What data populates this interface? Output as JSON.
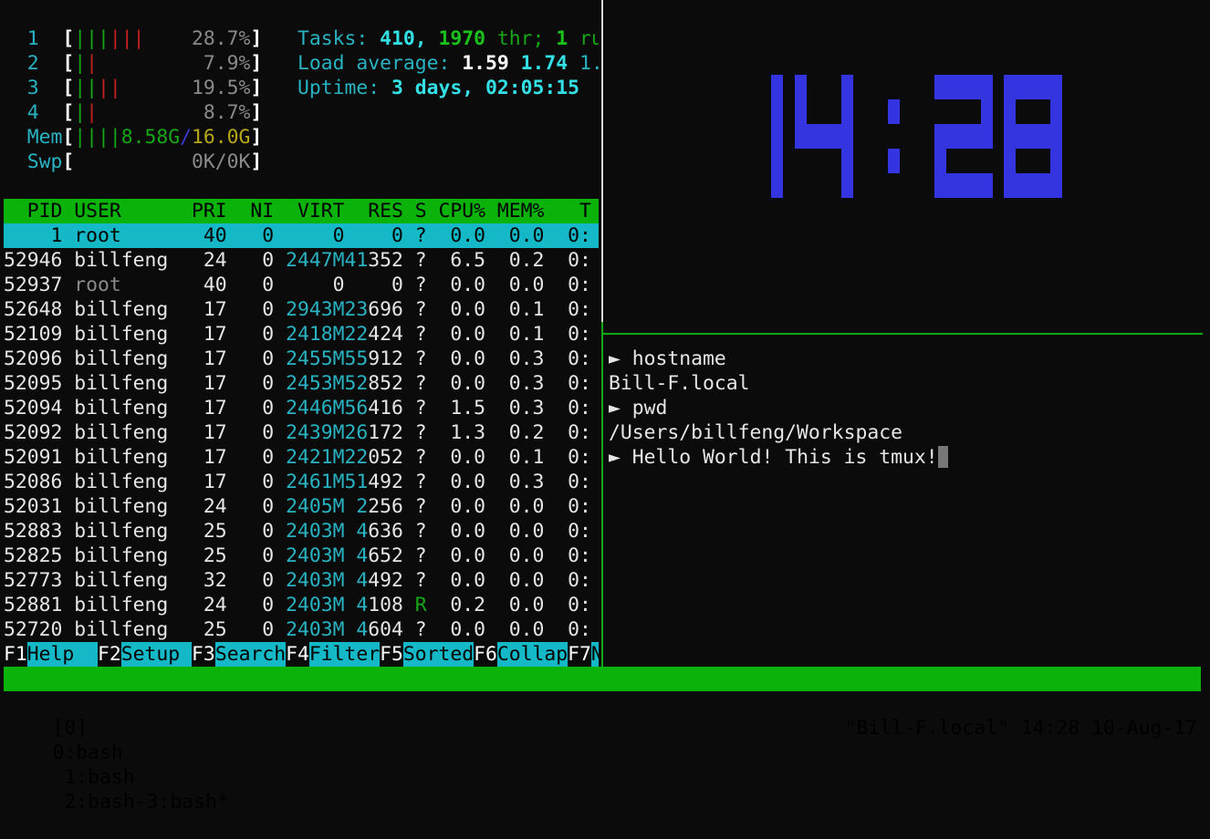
{
  "colors": {
    "status_bar": "#0ab20a",
    "selection": "#14b8c6",
    "clock": "#3434e0",
    "accent_cyan": "#29b3c2"
  },
  "htop": {
    "cpus": [
      {
        "label": "1",
        "value": "28.7%",
        "bars": [
          {
            "color": "green",
            "count": 3
          },
          {
            "color": "red",
            "count": 3
          }
        ]
      },
      {
        "label": "2",
        "value": "7.9%",
        "bars": [
          {
            "color": "green",
            "count": 1
          },
          {
            "color": "red",
            "count": 1
          }
        ]
      },
      {
        "label": "3",
        "value": "19.5%",
        "bars": [
          {
            "color": "green",
            "count": 2
          },
          {
            "color": "red",
            "count": 2
          }
        ]
      },
      {
        "label": "4",
        "value": "8.7%",
        "bars": [
          {
            "color": "green",
            "count": 1
          },
          {
            "color": "red",
            "count": 1
          }
        ]
      }
    ],
    "mem": {
      "label": "Mem",
      "bars": 4,
      "used": "8.58G",
      "sep": "/",
      "total": "16.0G"
    },
    "swp": {
      "label": "Swp",
      "value": "0K/0K"
    },
    "tasks": {
      "label": "Tasks:",
      "count": "410,",
      "threads": "1970",
      "thr_label": "thr;",
      "running": "1",
      "run_label": "ru"
    },
    "load": {
      "label": "Load average:",
      "l1": "1.59",
      "l5": "1.74",
      "l15": "1."
    },
    "uptime": {
      "label": "Uptime:",
      "value": "3 days, 02:05:15"
    },
    "columns": [
      "PID",
      "USER",
      "PRI",
      "NI",
      "VIRT",
      "RES",
      "S",
      "CPU%",
      "MEM%",
      "T"
    ],
    "processes": [
      {
        "pid": "1",
        "user": "root",
        "pri": "40",
        "ni": "0",
        "virt": "0",
        "res": "0",
        "s": "?",
        "cpu": "0.0",
        "mem": "0.0",
        "time": "0:",
        "selected": true
      },
      {
        "pid": "52946",
        "user": "billfeng",
        "pri": "24",
        "ni": "0",
        "virt": "2447M",
        "res": "41352",
        "s": "?",
        "cpu": "6.5",
        "mem": "0.2",
        "time": "0:"
      },
      {
        "pid": "52937",
        "user": "root",
        "pri": "40",
        "ni": "0",
        "virt": "0",
        "res": "0",
        "s": "?",
        "cpu": "0.0",
        "mem": "0.0",
        "time": "0:",
        "kernel": true
      },
      {
        "pid": "52648",
        "user": "billfeng",
        "pri": "17",
        "ni": "0",
        "virt": "2943M",
        "res": "23696",
        "s": "?",
        "cpu": "0.0",
        "mem": "0.1",
        "time": "0:"
      },
      {
        "pid": "52109",
        "user": "billfeng",
        "pri": "17",
        "ni": "0",
        "virt": "2418M",
        "res": "22424",
        "s": "?",
        "cpu": "0.0",
        "mem": "0.1",
        "time": "0:"
      },
      {
        "pid": "52096",
        "user": "billfeng",
        "pri": "17",
        "ni": "0",
        "virt": "2455M",
        "res": "55912",
        "s": "?",
        "cpu": "0.0",
        "mem": "0.3",
        "time": "0:"
      },
      {
        "pid": "52095",
        "user": "billfeng",
        "pri": "17",
        "ni": "0",
        "virt": "2453M",
        "res": "52852",
        "s": "?",
        "cpu": "0.0",
        "mem": "0.3",
        "time": "0:"
      },
      {
        "pid": "52094",
        "user": "billfeng",
        "pri": "17",
        "ni": "0",
        "virt": "2446M",
        "res": "56416",
        "s": "?",
        "cpu": "1.5",
        "mem": "0.3",
        "time": "0:"
      },
      {
        "pid": "52092",
        "user": "billfeng",
        "pri": "17",
        "ni": "0",
        "virt": "2439M",
        "res": "26172",
        "s": "?",
        "cpu": "1.3",
        "mem": "0.2",
        "time": "0:"
      },
      {
        "pid": "52091",
        "user": "billfeng",
        "pri": "17",
        "ni": "0",
        "virt": "2421M",
        "res": "22052",
        "s": "?",
        "cpu": "0.0",
        "mem": "0.1",
        "time": "0:"
      },
      {
        "pid": "52086",
        "user": "billfeng",
        "pri": "17",
        "ni": "0",
        "virt": "2461M",
        "res": "51492",
        "s": "?",
        "cpu": "0.0",
        "mem": "0.3",
        "time": "0:"
      },
      {
        "pid": "52031",
        "user": "billfeng",
        "pri": "24",
        "ni": "0",
        "virt": "2405M",
        "res": "2256",
        "s": "?",
        "cpu": "0.0",
        "mem": "0.0",
        "time": "0:"
      },
      {
        "pid": "52883",
        "user": "billfeng",
        "pri": "25",
        "ni": "0",
        "virt": "2403M",
        "res": "4636",
        "s": "?",
        "cpu": "0.0",
        "mem": "0.0",
        "time": "0:"
      },
      {
        "pid": "52825",
        "user": "billfeng",
        "pri": "25",
        "ni": "0",
        "virt": "2403M",
        "res": "4652",
        "s": "?",
        "cpu": "0.0",
        "mem": "0.0",
        "time": "0:"
      },
      {
        "pid": "52773",
        "user": "billfeng",
        "pri": "32",
        "ni": "0",
        "virt": "2403M",
        "res": "4492",
        "s": "?",
        "cpu": "0.0",
        "mem": "0.0",
        "time": "0:"
      },
      {
        "pid": "52881",
        "user": "billfeng",
        "pri": "24",
        "ni": "0",
        "virt": "2403M",
        "res": "4108",
        "s": "R",
        "cpu": "0.2",
        "mem": "0.0",
        "time": "0:"
      },
      {
        "pid": "52720",
        "user": "billfeng",
        "pri": "25",
        "ni": "0",
        "virt": "2403M",
        "res": "4604",
        "s": "?",
        "cpu": "0.0",
        "mem": "0.0",
        "time": "0:"
      }
    ],
    "fkeys": [
      {
        "key": "F1",
        "label": "Help"
      },
      {
        "key": "F2",
        "label": "Setup"
      },
      {
        "key": "F3",
        "label": "Search"
      },
      {
        "key": "F4",
        "label": "Filter"
      },
      {
        "key": "F5",
        "label": "Sorted"
      },
      {
        "key": "F6",
        "label": "Collap"
      },
      {
        "key": "F7",
        "label": "N"
      }
    ]
  },
  "clock": {
    "time": "14:28"
  },
  "shell": {
    "prompt_symbol": "►",
    "lines": [
      {
        "type": "cmd",
        "text": "hostname"
      },
      {
        "type": "out",
        "text": "Bill-F.local"
      },
      {
        "type": "cmd",
        "text": "pwd"
      },
      {
        "type": "out",
        "text": "/Users/billfeng/Workspace"
      },
      {
        "type": "cmd",
        "text": "Hello World! This is tmux!",
        "cursor": true
      }
    ]
  },
  "tmux": {
    "session": "[0]",
    "windows": [
      "0:bash",
      "1:bash",
      "2:bash-",
      "3:bash*"
    ],
    "host": "\"Bill-F.local\"",
    "time": "14:28",
    "date": "10-Aug-17"
  }
}
